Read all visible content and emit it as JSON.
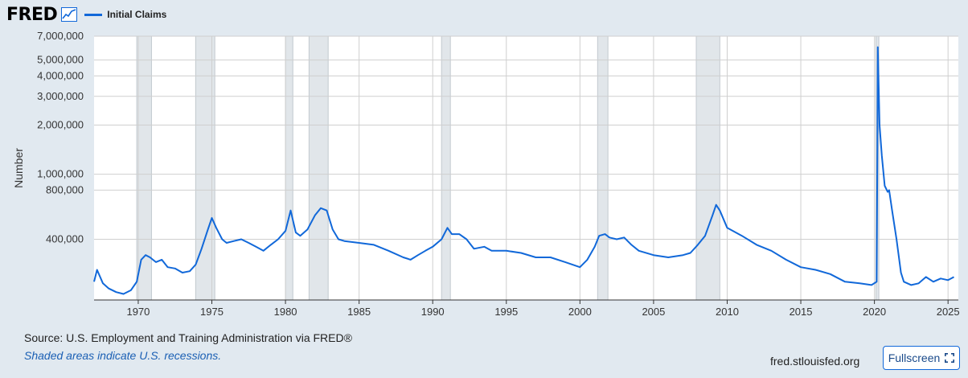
{
  "header": {
    "logo": "FRED",
    "logo_icon": "line-graph-icon",
    "legend_label": "Initial Claims"
  },
  "footer": {
    "source": "Source: U.S. Employment and Training Administration via FRED®",
    "note": "Shaded areas indicate U.S. recessions.",
    "site": "fred.stlouisfed.org",
    "fullscreen_label": "Fullscreen",
    "fullscreen_icon": "expand-icon"
  },
  "colors": {
    "line": "#1168d9",
    "recession_shade": "#e1e6ea",
    "background": "#e1e9f0",
    "plot_background": "#ffffff"
  },
  "chart_data": {
    "type": "line",
    "ylabel": "Number",
    "scale": "log",
    "grid": true,
    "ylim": [
      170000,
      7000000
    ],
    "xlim": [
      1967.0,
      2025.7
    ],
    "yticks": [
      {
        "value": 400000,
        "label": "400,000"
      },
      {
        "value": 800000,
        "label": "800,000"
      },
      {
        "value": 1000000,
        "label": "1,000,000"
      },
      {
        "value": 2000000,
        "label": "2,000,000"
      },
      {
        "value": 3000000,
        "label": "3,000,000"
      },
      {
        "value": 4000000,
        "label": "4,000,000"
      },
      {
        "value": 5000000,
        "label": "5,000,000"
      },
      {
        "value": 7000000,
        "label": "7,000,000"
      }
    ],
    "xticks": [
      {
        "value": 1970,
        "label": "1970"
      },
      {
        "value": 1975,
        "label": "1975"
      },
      {
        "value": 1980,
        "label": "1980"
      },
      {
        "value": 1985,
        "label": "1985"
      },
      {
        "value": 1990,
        "label": "1990"
      },
      {
        "value": 1995,
        "label": "1995"
      },
      {
        "value": 2000,
        "label": "2000"
      },
      {
        "value": 2005,
        "label": "2005"
      },
      {
        "value": 2010,
        "label": "2010"
      },
      {
        "value": 2015,
        "label": "2015"
      },
      {
        "value": 2020,
        "label": "2020"
      },
      {
        "value": 2025,
        "label": "2025"
      }
    ],
    "recessions": [
      [
        1969.9,
        1970.9
      ],
      [
        1973.9,
        1975.2
      ],
      [
        1980.0,
        1980.5
      ],
      [
        1981.6,
        1982.9
      ],
      [
        1990.6,
        1991.2
      ],
      [
        2001.2,
        2001.9
      ],
      [
        2007.9,
        2009.5
      ],
      [
        2020.1,
        2020.3
      ]
    ],
    "series": [
      {
        "name": "Initial Claims",
        "x": [
          1967.0,
          1967.2,
          1967.6,
          1968.0,
          1968.5,
          1969.0,
          1969.5,
          1969.9,
          1970.2,
          1970.5,
          1970.8,
          1971.2,
          1971.6,
          1972.0,
          1972.5,
          1973.0,
          1973.5,
          1973.9,
          1974.3,
          1974.7,
          1975.0,
          1975.3,
          1975.7,
          1976.0,
          1976.5,
          1977.0,
          1977.5,
          1978.0,
          1978.5,
          1979.0,
          1979.5,
          1980.0,
          1980.35,
          1980.7,
          1981.0,
          1981.5,
          1982.0,
          1982.4,
          1982.8,
          1983.2,
          1983.6,
          1984.0,
          1985.0,
          1986.0,
          1987.0,
          1988.0,
          1988.5,
          1989.0,
          1989.5,
          1990.0,
          1990.6,
          1991.0,
          1991.3,
          1991.8,
          1992.3,
          1992.8,
          1993.5,
          1994.0,
          1995.0,
          1996.0,
          1997.0,
          1998.0,
          1999.0,
          2000.0,
          2000.5,
          2001.0,
          2001.3,
          2001.7,
          2002.0,
          2002.5,
          2003.0,
          2003.5,
          2004.0,
          2005.0,
          2006.0,
          2007.0,
          2007.5,
          2008.0,
          2008.5,
          2009.0,
          2009.25,
          2009.5,
          2010.0,
          2011.0,
          2012.0,
          2013.0,
          2014.0,
          2015.0,
          2016.0,
          2017.0,
          2018.0,
          2019.0,
          2019.8,
          2020.15,
          2020.2,
          2020.23,
          2020.27,
          2020.35,
          2020.5,
          2020.7,
          2020.9,
          2021.0,
          2021.2,
          2021.5,
          2021.8,
          2022.0,
          2022.5,
          2023.0,
          2023.5,
          2024.0,
          2024.5,
          2025.0,
          2025.4
        ],
        "values": [
          220000,
          260000,
          215000,
          200000,
          190000,
          185000,
          195000,
          220000,
          300000,
          320000,
          310000,
          290000,
          300000,
          270000,
          265000,
          250000,
          255000,
          280000,
          350000,
          450000,
          540000,
          470000,
          400000,
          380000,
          390000,
          400000,
          380000,
          360000,
          340000,
          370000,
          400000,
          450000,
          600000,
          440000,
          420000,
          460000,
          560000,
          620000,
          600000,
          460000,
          400000,
          390000,
          380000,
          370000,
          340000,
          310000,
          300000,
          320000,
          340000,
          360000,
          400000,
          470000,
          430000,
          430000,
          400000,
          350000,
          360000,
          340000,
          340000,
          330000,
          310000,
          310000,
          290000,
          270000,
          300000,
          360000,
          420000,
          430000,
          410000,
          400000,
          410000,
          370000,
          340000,
          320000,
          310000,
          320000,
          330000,
          370000,
          420000,
          560000,
          650000,
          600000,
          470000,
          420000,
          370000,
          340000,
          300000,
          270000,
          260000,
          245000,
          220000,
          215000,
          210000,
          220000,
          1500000,
          6000000,
          4000000,
          2000000,
          1300000,
          850000,
          780000,
          800000,
          600000,
          400000,
          250000,
          220000,
          210000,
          215000,
          235000,
          220000,
          230000,
          225000,
          235000
        ]
      }
    ]
  }
}
